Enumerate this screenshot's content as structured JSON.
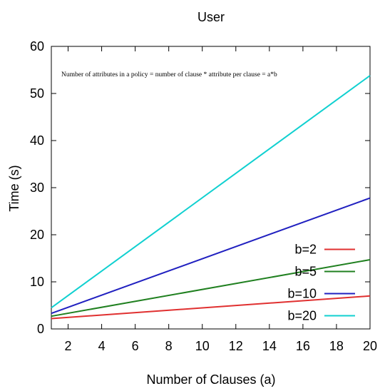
{
  "chart_data": {
    "type": "line",
    "title": "User",
    "xlabel": "Number of Clauses (a)",
    "ylabel": "Time (s)",
    "xlim": [
      1,
      20
    ],
    "ylim": [
      0,
      60
    ],
    "xticks": [
      2,
      4,
      6,
      8,
      10,
      12,
      14,
      16,
      18,
      20
    ],
    "yticks": [
      0,
      10,
      20,
      30,
      40,
      50,
      60
    ],
    "grid": false,
    "legend_position": "bottom-right",
    "annotation": "Number of attributes in a policy = number of clause * attribute per clause = a*b",
    "x": [
      1,
      20
    ],
    "series": [
      {
        "name": "b=2",
        "color": "#e03030",
        "values": [
          2.2,
          7.0
        ]
      },
      {
        "name": "b=5",
        "color": "#208020",
        "values": [
          2.7,
          14.7
        ]
      },
      {
        "name": "b=10",
        "color": "#2020c0",
        "values": [
          3.3,
          27.8
        ]
      },
      {
        "name": "b=20",
        "color": "#10d0d0",
        "values": [
          4.5,
          53.8
        ]
      }
    ]
  }
}
